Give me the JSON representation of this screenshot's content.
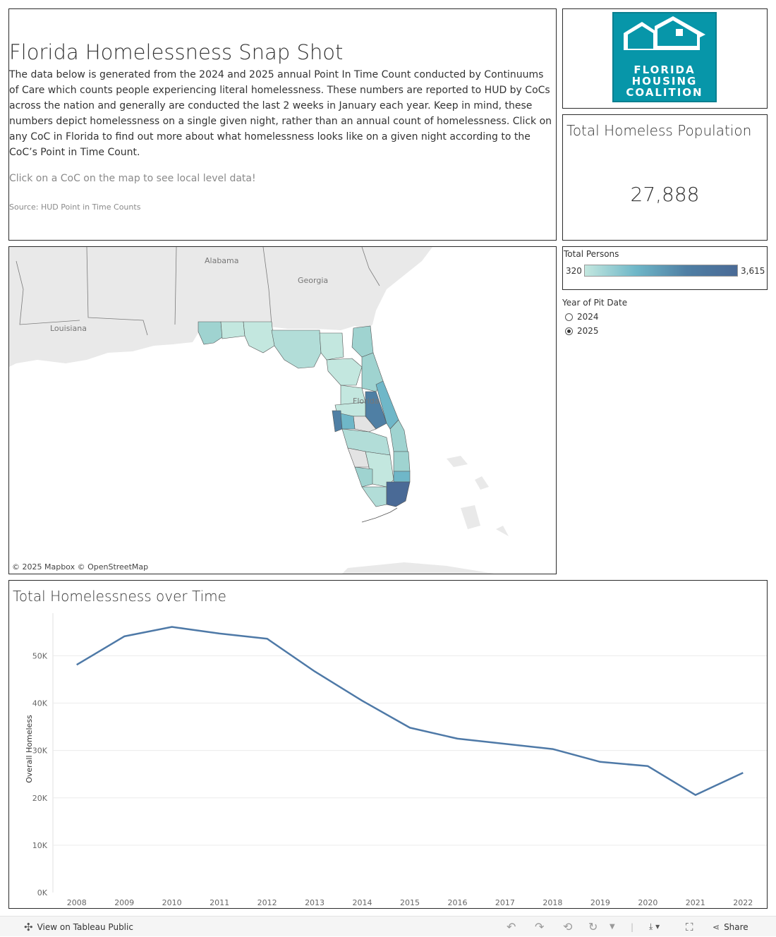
{
  "intro": {
    "title": "Florida Homelessness Snap Shot",
    "body": "The data below is generated from the 2024 and 2025 annual Point In Time Count conducted by Continuums of Care which counts people experiencing literal homelessness. These numbers are reported to HUD by CoCs across the nation and generally are conducted the last 2 weeks in January each year. Keep in mind, these numbers depict homelessness on a single given night, rather than an annual count of homelessness. Click on any CoC in Florida to find out more about what homelessness looks like on a given night according to the CoC’s Point in Time Count.",
    "click_hint": "Click on a CoC on the map to see local level data!",
    "source": "Source: HUD Point in Time Counts"
  },
  "logo": {
    "lines": [
      "FLORIDA",
      "HOUSING",
      "COALITION"
    ],
    "color": "#0796a9"
  },
  "kpi": {
    "title": "Total Homeless Population",
    "value": "27,888"
  },
  "legend": {
    "title": "Total Persons",
    "min": "320",
    "max": "3,615",
    "colors": [
      "#c3e7df",
      "#6fb7c8",
      "#4f7fa4",
      "#4a6a96"
    ]
  },
  "filter": {
    "title": "Year of Pit Date",
    "options": [
      {
        "label": "2024",
        "selected": false
      },
      {
        "label": "2025",
        "selected": true
      }
    ]
  },
  "map": {
    "labels": {
      "alabama": "Alabama",
      "georgia": "Georgia",
      "louisiana": "Louisiana",
      "florida": "Florida"
    },
    "attribution": "© 2025 Mapbox  © OpenStreetMap"
  },
  "chart_data": {
    "type": "line",
    "title": "Total Homelessness over Time",
    "xlabel": "",
    "ylabel": "Overall Homeless",
    "x": [
      "2008",
      "2009",
      "2010",
      "2011",
      "2012",
      "2013",
      "2014",
      "2015",
      "2016",
      "2017",
      "2018",
      "2019",
      "2020",
      "2021",
      "2022"
    ],
    "series": [
      {
        "values": [
          48100,
          54100,
          56100,
          54700,
          53600,
          46700,
          40500,
          34800,
          32500,
          31400,
          30300,
          27600,
          26700,
          20600,
          25300
        ]
      }
    ],
    "ylim": [
      0,
      59000
    ],
    "yticks": [
      0,
      10000,
      20000,
      30000,
      40000,
      50000
    ],
    "ytick_labels": [
      "0K",
      "10K",
      "20K",
      "30K",
      "40K",
      "50K"
    ],
    "color": "#4e79a7",
    "grid": true
  },
  "toolbar": {
    "view_label": "View on Tableau Public",
    "share_label": "Share"
  }
}
